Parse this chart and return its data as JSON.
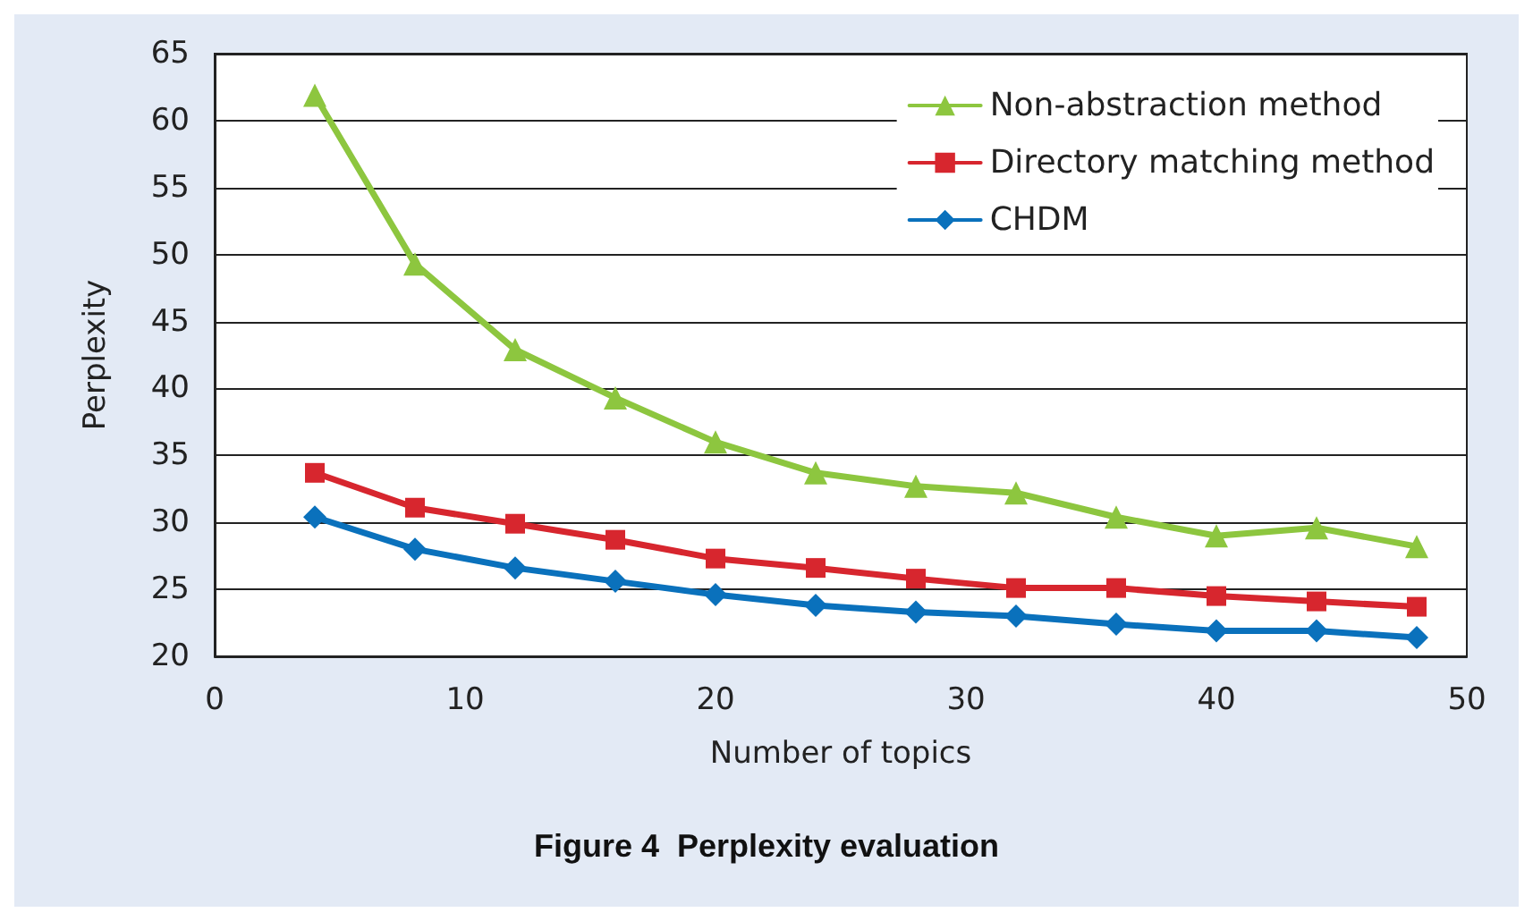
{
  "chart_data": {
    "type": "line",
    "title": "Figure 4  Perplexity evaluation",
    "xlabel": "Number of topics",
    "ylabel": "Perplexity",
    "x": [
      4,
      8,
      12,
      16,
      20,
      24,
      28,
      32,
      36,
      40,
      44,
      48
    ],
    "series": [
      {
        "name": "Non-abstraction method",
        "color": "#8dc63f",
        "marker": "triangle",
        "values": [
          61.9,
          49.3,
          42.9,
          39.3,
          36.0,
          33.7,
          32.7,
          32.2,
          30.4,
          29.0,
          29.6,
          28.2
        ]
      },
      {
        "name": "Directory matching method",
        "color": "#d7262e",
        "marker": "square",
        "values": [
          33.7,
          31.1,
          29.9,
          28.7,
          27.3,
          26.6,
          25.8,
          25.1,
          25.1,
          24.5,
          24.1,
          23.7
        ]
      },
      {
        "name": "CHDM",
        "color": "#0a71bc",
        "marker": "diamond",
        "values": [
          30.4,
          28.0,
          26.6,
          25.6,
          24.6,
          23.8,
          23.3,
          23.0,
          22.4,
          21.9,
          21.9,
          21.4
        ]
      }
    ],
    "xlim": [
      0,
      50
    ],
    "xticks": [
      0,
      10,
      20,
      30,
      40,
      50
    ],
    "ylim": [
      20,
      65
    ],
    "yticks": [
      20,
      25,
      30,
      35,
      40,
      45,
      50,
      55,
      60,
      65
    ],
    "grid": "y",
    "legend": "top right",
    "line_style": "solid"
  }
}
